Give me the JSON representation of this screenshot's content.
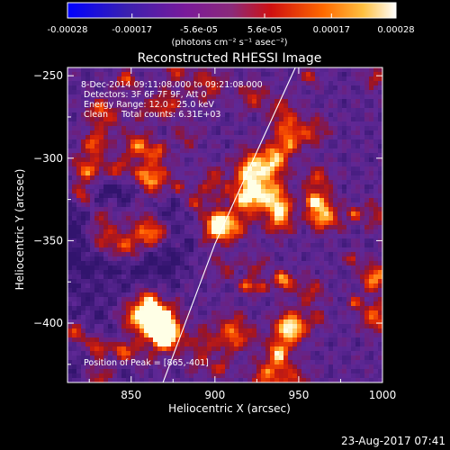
{
  "chart_data": {
    "type": "heatmap",
    "title": "Reconstructed RHESSI Image",
    "xlabel": "Heliocentric X (arcsec)",
    "ylabel": "Heliocentric Y (arcsec)",
    "xlim": [
      812,
      1000
    ],
    "ylim": [
      -436,
      -245
    ],
    "x_ticks": [
      850,
      900,
      950,
      1000
    ],
    "y_ticks": [
      -250,
      -300,
      -350,
      -400
    ],
    "colorbar": {
      "range": [
        -0.00028,
        0.00028
      ],
      "tick_values": [
        -0.00028,
        -0.00017,
        -5.6e-05,
        5.6e-05,
        0.00017,
        0.00028
      ],
      "tick_labels": [
        "-0.00028",
        "-0.00017",
        "-5.6e-05",
        "5.6e-05",
        "0.00017",
        "0.00028"
      ],
      "unit_label": "(photons cm⁻² s⁻¹ asec⁻²)"
    },
    "annotations": [
      "8-Dec-2014 09:11:08.000 to 09:21:08.000",
      "Detectors: 3F 6F 7F 9F, Att 0",
      "Energy Range: 12.0 - 25.0 keV",
      "Clean     Total counts: 6.31E+03"
    ],
    "peak_label": "Position of Peak = [865,-401]",
    "peak_position": [
      865,
      -401
    ],
    "limb_curve": [
      [
        869,
        -436
      ],
      [
        900,
        -352
      ],
      [
        925,
        -296
      ],
      [
        948,
        -245
      ]
    ]
  },
  "footer": {
    "date": "23-Aug-2017 07:41"
  },
  "colors": {
    "background": "#000000",
    "text": "#ffffff",
    "colormap": [
      "#0000ff",
      "#4a2a9a",
      "#8a2090",
      "#c01010",
      "#ff3a00",
      "#ff8c00",
      "#ffcc40",
      "#ffffff"
    ]
  }
}
